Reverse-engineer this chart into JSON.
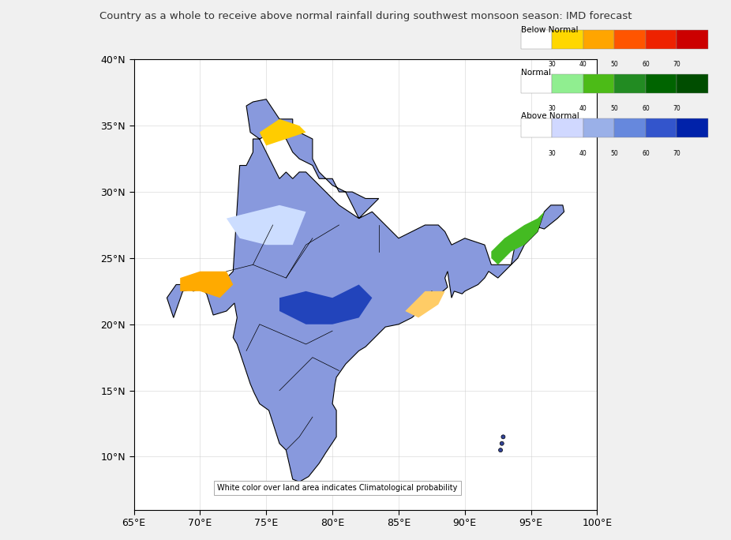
{
  "title": "Country as a whole to receive above normal rainfall during southwest monsoon season: IMD forecast",
  "xlim": [
    65,
    100
  ],
  "ylim": [
    6,
    40
  ],
  "xticks": [
    65,
    70,
    75,
    80,
    85,
    90,
    95,
    100
  ],
  "yticks": [
    10,
    15,
    20,
    25,
    30,
    35,
    40
  ],
  "xlabel_suffix": "°E",
  "ylabel_suffix": "°N",
  "note": "White color over land area indicates Climatological probability",
  "legend_labels": [
    "Below Normal",
    "Normal",
    "Above Normal"
  ],
  "legend_colors_below": [
    "#ffffff",
    "#ffd700",
    "#ffa500",
    "#ff6600",
    "#ff2200",
    "#cc0000"
  ],
  "legend_colors_normal": [
    "#ffffff",
    "#90ee90",
    "#4cbb17",
    "#228b22",
    "#006400",
    "#004d00"
  ],
  "legend_colors_above": [
    "#ffffff",
    "#d0d8ff",
    "#9ab0e8",
    "#6688dd",
    "#3355cc",
    "#0022aa"
  ],
  "colorbar_ticks": [
    "30",
    "40",
    "50",
    "60",
    "70"
  ],
  "background_color": "#f5f5f5",
  "map_background": "#ffffff"
}
